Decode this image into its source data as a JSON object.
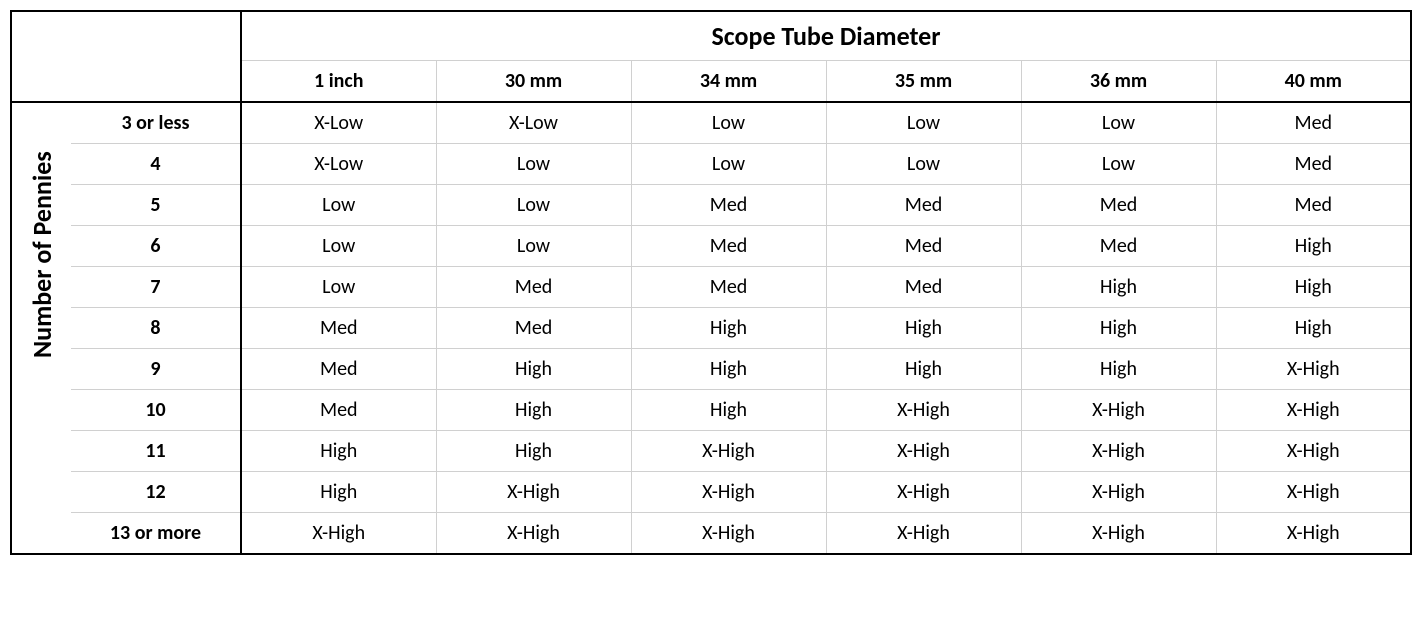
{
  "table": {
    "type": "table",
    "top_header": "Scope Tube Diameter",
    "side_header": "Number of Pennies",
    "columns": [
      "1 inch",
      "30 mm",
      "34 mm",
      "35 mm",
      "36 mm",
      "40 mm"
    ],
    "row_labels": [
      "3 or less",
      "4",
      "5",
      "6",
      "7",
      "8",
      "9",
      "10",
      "11",
      "12",
      "13 or more"
    ],
    "rows": [
      [
        "X-Low",
        "X-Low",
        "Low",
        "Low",
        "Low",
        "Med"
      ],
      [
        "X-Low",
        "Low",
        "Low",
        "Low",
        "Low",
        "Med"
      ],
      [
        "Low",
        "Low",
        "Med",
        "Med",
        "Med",
        "Med"
      ],
      [
        "Low",
        "Low",
        "Med",
        "Med",
        "Med",
        "High"
      ],
      [
        "Low",
        "Med",
        "Med",
        "Med",
        "High",
        "High"
      ],
      [
        "Med",
        "Med",
        "High",
        "High",
        "High",
        "High"
      ],
      [
        "Med",
        "High",
        "High",
        "High",
        "High",
        "X-High"
      ],
      [
        "Med",
        "High",
        "High",
        "X-High",
        "X-High",
        "X-High"
      ],
      [
        "High",
        "High",
        "X-High",
        "X-High",
        "X-High",
        "X-High"
      ],
      [
        "High",
        "X-High",
        "X-High",
        "X-High",
        "X-High",
        "X-High"
      ],
      [
        "X-High",
        "X-High",
        "X-High",
        "X-High",
        "X-High",
        "X-High"
      ]
    ],
    "background_color": "#ffffff",
    "text_color": "#000000",
    "outer_border_color": "#000000",
    "inner_grid_color": "#d0d0d0",
    "title_fontsize": 26,
    "header_fontsize": 20,
    "cell_fontsize": 20,
    "font_family": "Calibri"
  }
}
